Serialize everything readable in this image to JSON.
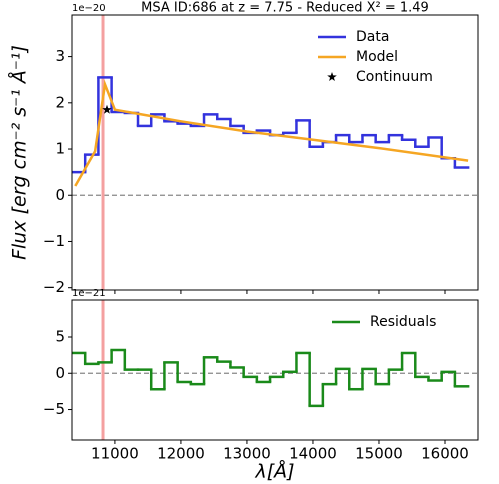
{
  "chart_data": [
    {
      "type": "line",
      "title": "MSA ID:686 at z = 7.75 - Reduced Χ² = 1.49",
      "y_label": "Flux [erg cm⁻² s⁻¹ Å⁻¹]",
      "y_offset_label": "1e−20",
      "xlim": [
        10350,
        16500
      ],
      "xticks": [
        11000,
        12000,
        13000,
        14000,
        15000,
        16000
      ],
      "xtick_labels": false,
      "ylim": [
        -2.05,
        3.9
      ],
      "yticks": [
        {
          "value": -2,
          "label": "−2"
        },
        {
          "value": -1,
          "label": "−1"
        },
        0,
        1,
        2,
        3
      ],
      "hline": 0,
      "vline": 10820,
      "legend": "upper right",
      "series": [
        {
          "name": "Data",
          "color": "#3333dd",
          "drawstyle": "steps-mid",
          "x": [
            10450,
            10650,
            10850,
            11050,
            11250,
            11450,
            11650,
            11850,
            12050,
            12250,
            12450,
            12650,
            12850,
            13050,
            13250,
            13450,
            13650,
            13850,
            14050,
            14250,
            14450,
            14650,
            14850,
            15050,
            15250,
            15450,
            15650,
            15850,
            16050,
            16250
          ],
          "values": [
            0.5,
            0.88,
            2.55,
            1.8,
            1.78,
            1.5,
            1.75,
            1.6,
            1.55,
            1.5,
            1.75,
            1.65,
            1.5,
            1.35,
            1.4,
            1.3,
            1.35,
            1.62,
            1.05,
            1.15,
            1.3,
            1.15,
            1.3,
            1.15,
            1.3,
            1.2,
            1.05,
            1.25,
            0.8,
            0.6
          ]
        },
        {
          "name": "Model",
          "color": "#f5a623",
          "drawstyle": "line",
          "x": [
            10400,
            10700,
            10850,
            11000,
            12000,
            13000,
            14000,
            15000,
            16350
          ],
          "values": [
            0.2,
            0.95,
            2.4,
            1.85,
            1.6,
            1.38,
            1.2,
            1.02,
            0.75
          ]
        },
        {
          "name": "Continuum",
          "color": "#000000",
          "drawstyle": "marker",
          "x": [
            10880
          ],
          "values": [
            1.85
          ]
        }
      ]
    },
    {
      "type": "line",
      "x_label": "λ[Å]",
      "y_offset_label": "1e−21",
      "xlim": [
        10350,
        16500
      ],
      "xticks": [
        11000,
        12000,
        13000,
        14000,
        15000,
        16000
      ],
      "xtick_labels": true,
      "ylim": [
        -9.2,
        10.1
      ],
      "yticks": [
        {
          "value": -5,
          "label": "−5"
        },
        0,
        5
      ],
      "hline": 0,
      "vline": 10820,
      "legend": "upper right",
      "series": [
        {
          "name": "Residuals",
          "color": "#1a8a1a",
          "drawstyle": "steps-mid",
          "x": [
            10450,
            10650,
            10850,
            11050,
            11250,
            11450,
            11650,
            11850,
            12050,
            12250,
            12450,
            12650,
            12850,
            13050,
            13250,
            13450,
            13650,
            13850,
            14050,
            14250,
            14450,
            14650,
            14850,
            15050,
            15250,
            15450,
            15650,
            15850,
            16050,
            16250
          ],
          "values": [
            2.8,
            1.3,
            1.5,
            3.2,
            0.5,
            0.5,
            -2.2,
            1.5,
            -1.2,
            -1.5,
            2.2,
            1.6,
            0.8,
            -0.5,
            -1.2,
            -0.5,
            0.2,
            2.8,
            -4.5,
            -1.5,
            0.6,
            -2.2,
            0.6,
            -1.5,
            0.5,
            2.8,
            -0.5,
            -1.0,
            0.2,
            -1.8
          ]
        }
      ]
    }
  ]
}
